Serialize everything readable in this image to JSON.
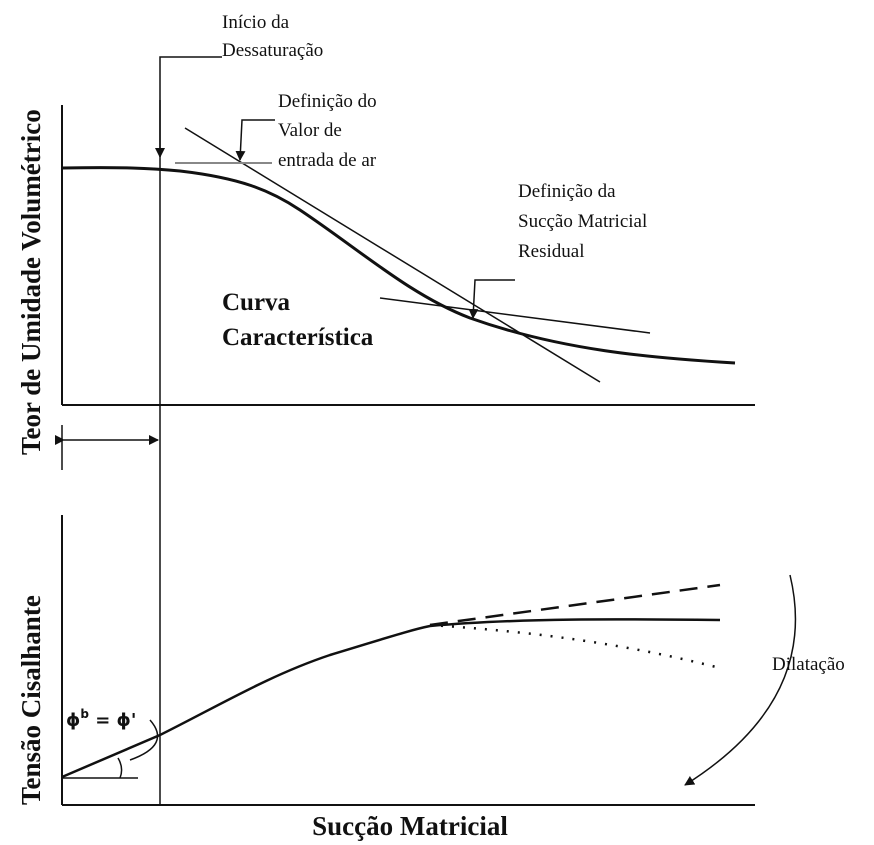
{
  "annotations": {
    "desaturation": [
      "Início da",
      "Dessaturação"
    ],
    "air_entry": [
      "Definição do",
      "Valor de",
      "entrada de ar"
    ],
    "residual": [
      "Definição da",
      "Sucção Matricial",
      "Residual"
    ],
    "curve": [
      "Curva",
      "Característica"
    ],
    "dilation": "Dilatação"
  },
  "axes": {
    "top_y": "Teor de Umidade Volumétrico",
    "bottom_y": "Tensão Cisalhante",
    "x": "Sucção Matricial"
  },
  "phi_label": {
    "symbol": "ϕ",
    "superscript": "b",
    "rest": " = ϕ'"
  }
}
